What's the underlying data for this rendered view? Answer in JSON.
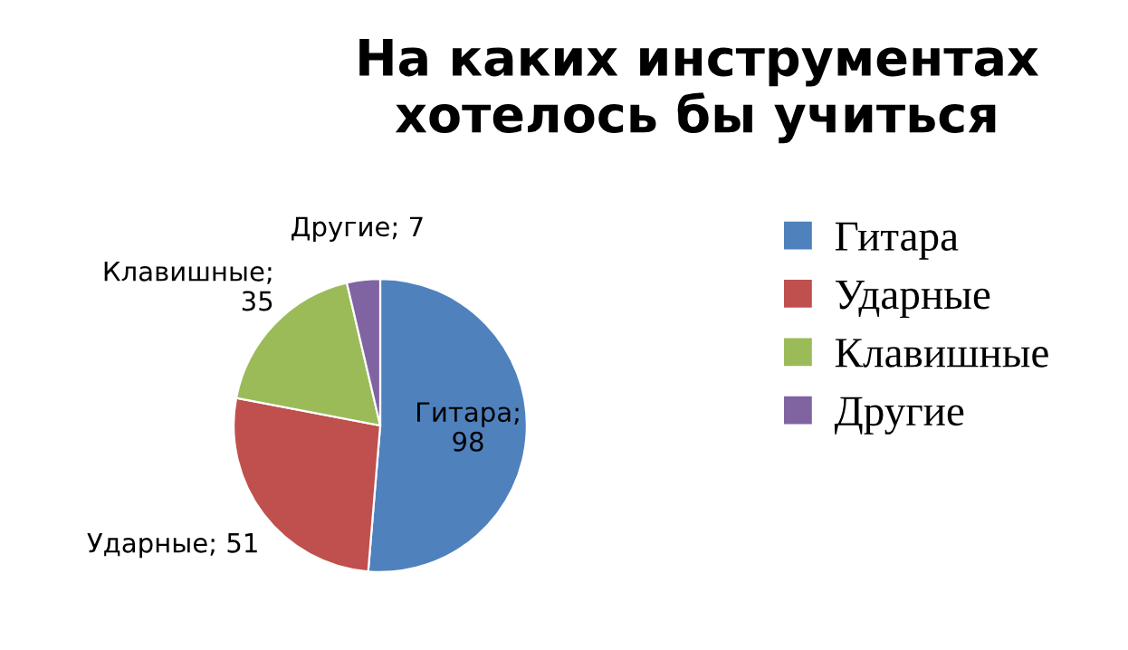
{
  "chart_data": {
    "type": "pie",
    "title": "На каких инструментах\nхотелось бы учиться",
    "categories": [
      "Гитара",
      "Ударные",
      "Клавишные",
      "Другие"
    ],
    "values": [
      98,
      51,
      35,
      7
    ],
    "colors": [
      "#4f81bd",
      "#c0504d",
      "#9bbb59",
      "#8064a2"
    ],
    "value_labels": [
      "Гитара;\n98",
      "Ударные; 51",
      "Клавишные;\n35",
      "Другие; 7"
    ],
    "legend": "right"
  }
}
